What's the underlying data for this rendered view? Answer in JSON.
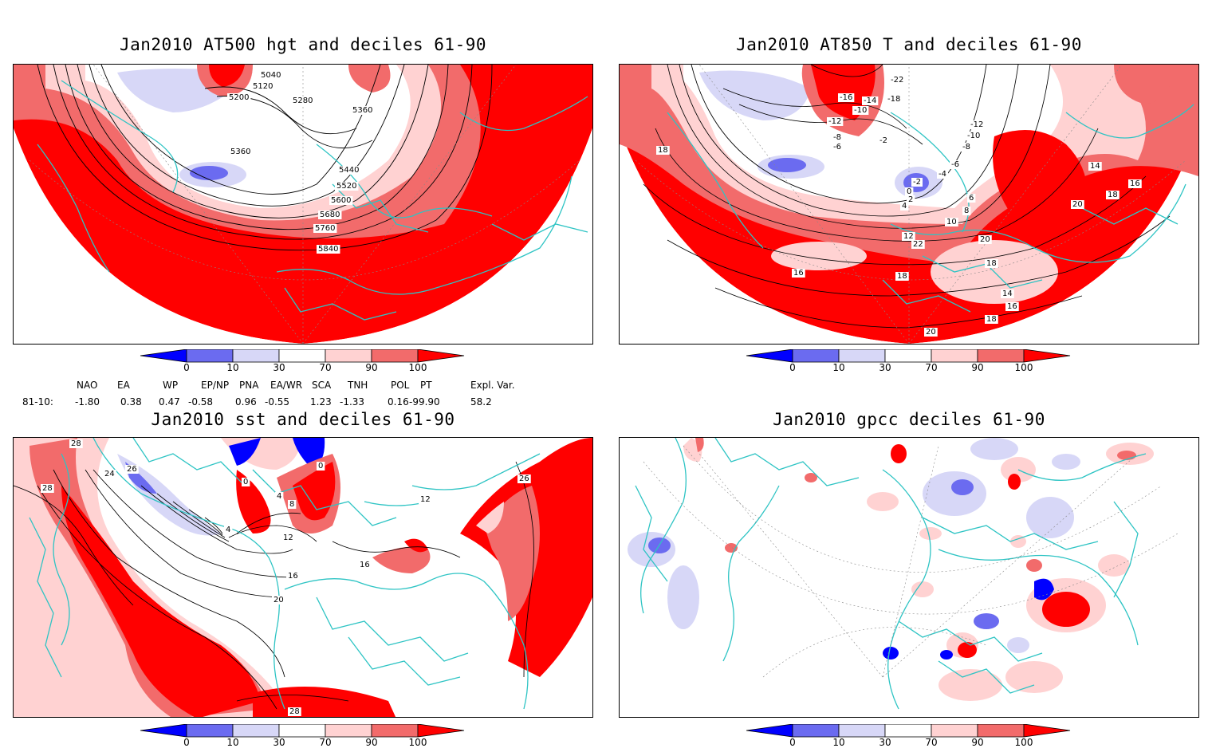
{
  "colorbar": {
    "tick_labels": [
      "0",
      "10",
      "30",
      "70",
      "90",
      "100"
    ],
    "colors": [
      "#0000ff",
      "#6b6bf0",
      "#d7d7f7",
      "#ffffff",
      "#ffd2d2",
      "#f26b6b",
      "#ff0000"
    ]
  },
  "panels": [
    {
      "title": "Jan2010 AT500 hgt and deciles 61-90",
      "contour_labels": [
        "5040",
        "5120",
        "5200",
        "5280",
        "5360",
        "5360",
        "5440",
        "5520",
        "5600",
        "5680",
        "5760",
        "5840"
      ]
    },
    {
      "title": "Jan2010 AT850 T and deciles 61-90",
      "contour_labels": [
        "-16",
        "-14",
        "-18",
        "-22",
        "-10",
        "-12",
        "-8",
        "-6",
        "-2",
        "-12",
        "-10",
        "-8",
        "-6",
        "-4",
        "-2",
        "0",
        "2",
        "4",
        "6",
        "8",
        "10",
        "12",
        "14",
        "16",
        "18",
        "20",
        "22",
        "20",
        "18",
        "18",
        "14",
        "16",
        "18",
        "20",
        "16",
        "18"
      ]
    },
    {
      "title": "Jan2010 sst and deciles 61-90",
      "contour_labels": [
        "28",
        "24",
        "28",
        "26",
        "0",
        "0",
        "4",
        "8",
        "4",
        "12",
        "16",
        "20",
        "16",
        "28",
        "26",
        "12"
      ]
    },
    {
      "title": "Jan2010 gpcc deciles 61-90",
      "contour_labels": []
    }
  ],
  "indices": {
    "headers": [
      "NAO",
      "EA",
      "WP",
      "EP/NP",
      "PNA",
      "EA/WR",
      "SCA",
      "TNH",
      "POL",
      "PT",
      "Expl. Var."
    ],
    "row_label": "81-10:",
    "values": [
      "-1.80",
      "0.38",
      "0.47",
      "-0.58",
      "0.96",
      "-0.55",
      "1.23",
      "-1.33",
      "0.16",
      "-99.90",
      "58.2"
    ]
  },
  "legend_meaning": "deciles"
}
